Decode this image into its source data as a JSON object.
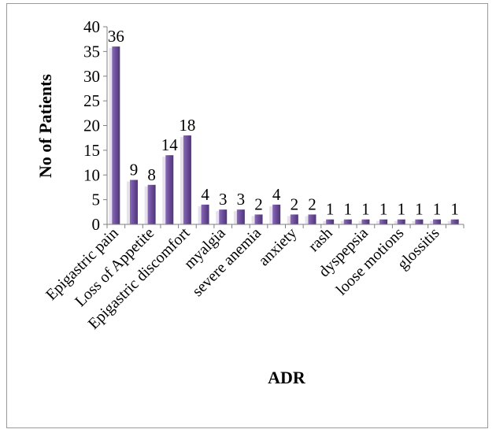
{
  "chart_data": {
    "type": "bar",
    "title": "",
    "xlabel": "ADR",
    "ylabel": "No of Patients",
    "ylim": [
      0,
      40
    ],
    "yticks": [
      0,
      5,
      10,
      15,
      20,
      25,
      30,
      35,
      40
    ],
    "grid": false,
    "legend": "none",
    "bar_color": "#6b4c9a",
    "categories": [
      "Epigastric pain",
      "",
      "Loss of Appetite",
      "",
      "Epigastric discomfort",
      "",
      "myalgia",
      "",
      "severe anemia",
      "",
      "anxiety",
      "",
      "rash",
      "",
      "dyspepsia",
      "",
      "loose motions",
      "",
      "glossitis",
      ""
    ],
    "values": [
      36,
      9,
      8,
      14,
      18,
      4,
      3,
      3,
      2,
      4,
      2,
      2,
      1,
      1,
      1,
      1,
      1,
      1,
      1,
      1
    ],
    "data_labels": [
      "36",
      "9",
      "8",
      "14",
      "18",
      "4",
      "3",
      "3",
      "2",
      "4",
      "2",
      "2",
      "1",
      "1",
      "1",
      "1",
      "1",
      "1",
      "1",
      "1"
    ]
  }
}
